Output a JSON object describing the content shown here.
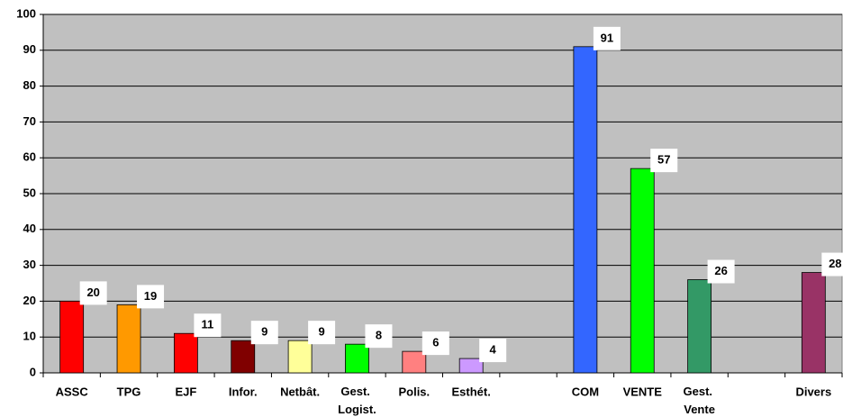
{
  "chart_data": {
    "type": "bar",
    "categories": [
      "ASSC",
      "TPG",
      "EJF",
      "Infor.",
      "Netbât.",
      "Gest. Logist.",
      "Polis.",
      "Esthét.",
      null,
      "COM",
      "VENTE",
      "Gest. Vente",
      null,
      "Divers"
    ],
    "values": [
      20,
      19,
      11,
      9,
      9,
      8,
      6,
      4,
      null,
      91,
      57,
      26,
      null,
      28
    ],
    "colors": [
      "#ff0000",
      "#ff9900",
      "#ff0000",
      "#800000",
      "#ffff99",
      "#00ff00",
      "#ff8080",
      "#cc99ff",
      null,
      "#3366ff",
      "#00ff00",
      "#339966",
      null,
      "#993366"
    ],
    "ylim": [
      0,
      100
    ],
    "yticks": [
      0,
      10,
      20,
      30,
      40,
      50,
      60,
      70,
      80,
      90,
      100
    ],
    "grid": true
  }
}
